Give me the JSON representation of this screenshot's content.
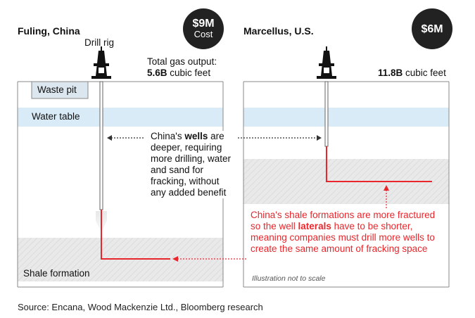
{
  "left_panel": {
    "title": "Fuling, China",
    "cost_amount": "$9M",
    "cost_label": "Cost",
    "drill_rig_label": "Drill rig",
    "output_label": "Total gas output:",
    "output_value": "5.6B",
    "output_unit": " cubic feet",
    "waste_pit_label": "Waste pit",
    "water_table_label": "Water table",
    "shale_label": "Shale formation"
  },
  "right_panel": {
    "title": "Marcellus, U.S.",
    "cost_amount": "$6M",
    "output_value": "11.8B",
    "output_unit": " cubic feet",
    "scale_note": "Illustration not to scale"
  },
  "annotations": {
    "wells_note_pre": "China's ",
    "wells_note_bold": "wells",
    "wells_note_post": " are deeper, requiring more drilling, water and sand for fracking, without any added benefit",
    "laterals_note_pre": "China's shale formations are more fractured so the well ",
    "laterals_note_bold": "laterals",
    "laterals_note_post": " have to be shorter, meaning companies must drill more wells to create the same amount of fracking space"
  },
  "source": "Source: Encana, Wood Mackenzie Ltd., Bloomberg research",
  "colors": {
    "water": "#d9ebf6",
    "shale": "#e6e6e6",
    "lateral": "#e8262b",
    "badge": "#222222"
  }
}
